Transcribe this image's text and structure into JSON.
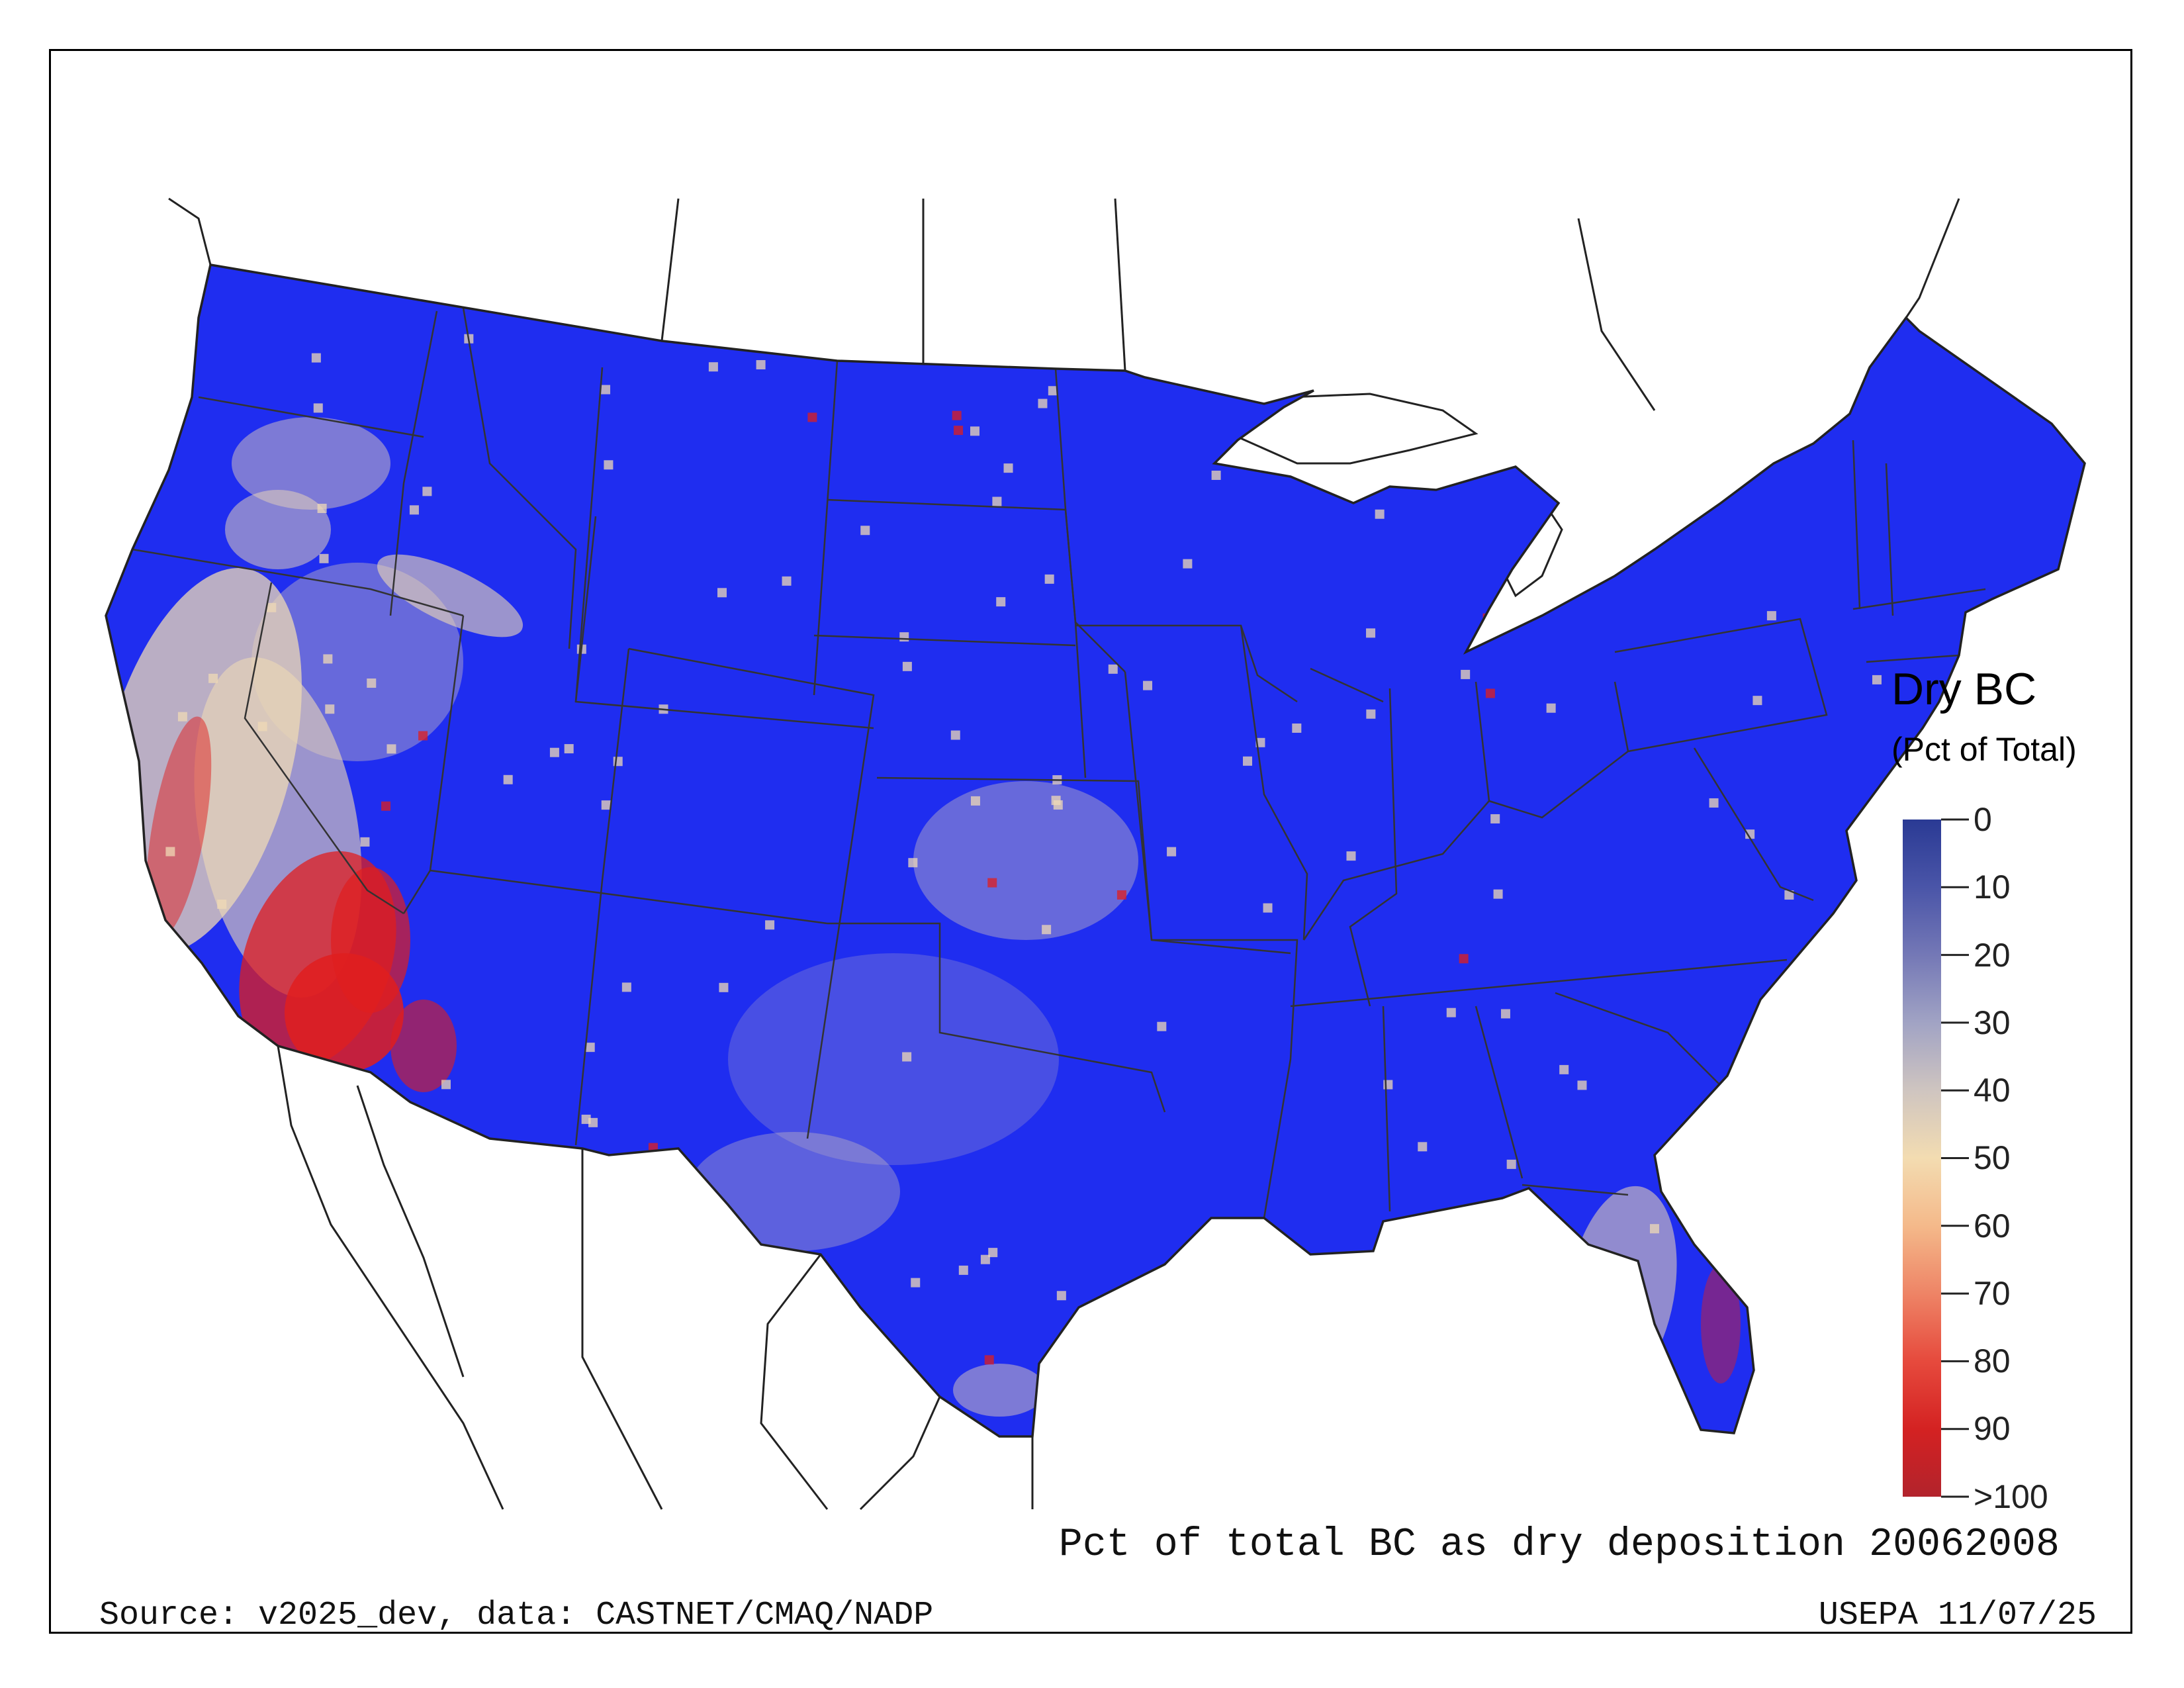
{
  "legend": {
    "title": "Dry BC",
    "subtitle": "(Pct of Total)",
    "ticks": [
      "0",
      "10",
      "20",
      "30",
      "40",
      "50",
      "60",
      "70",
      "80",
      "90",
      ">100"
    ],
    "colors": [
      "#2a3a94",
      "#4a55a8",
      "#7478b6",
      "#a1a3c4",
      "#cfc5c0",
      "#f3dcb1",
      "#f4b98a",
      "#ee8466",
      "#e64a3d",
      "#d42222",
      "#b2232c"
    ]
  },
  "map": {
    "title": "Pct of total BC as dry deposition 20062008",
    "region": "contiguous-us",
    "low_color": "#1f2df0",
    "mid_color": "#efd9b5",
    "high_color": "#e01e1e"
  },
  "footer": {
    "source": "Source: v2025_dev, data: CASTNET/CMAQ/NADP",
    "stamp": "USEPA 11/07/25"
  }
}
